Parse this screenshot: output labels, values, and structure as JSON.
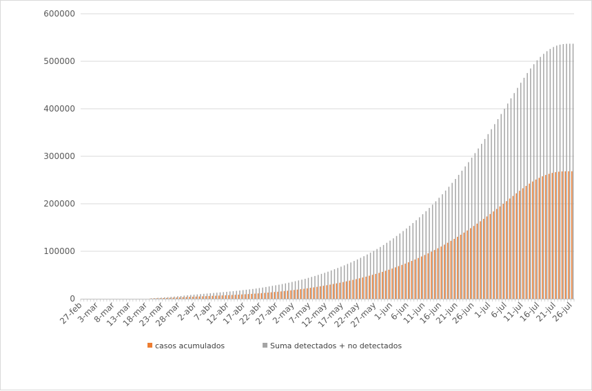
{
  "chart_data": {
    "type": "bar",
    "title": "",
    "xlabel": "",
    "ylabel": "",
    "ylim": [
      0,
      600000
    ],
    "yticks": [
      "0",
      "100000",
      "200000",
      "300000",
      "400000",
      "500000",
      "600000"
    ],
    "grid": true,
    "legend_position": "bottom",
    "colors": {
      "series1": "#ed7d31",
      "series2": "#a5a5a5",
      "grid": "#d9d9d9",
      "axis": "#bfbfbf"
    },
    "x_tick_labels": [
      "27-feb",
      "3-mar",
      "8-mar",
      "13-mar",
      "18-mar",
      "23-mar",
      "28-mar",
      "2-abr",
      "7-abr",
      "12-abr",
      "17-abr",
      "22-abr",
      "27-abr",
      "2-may",
      "7-may",
      "12-may",
      "17-may",
      "22-may",
      "27-may",
      "1-jun",
      "6-jun",
      "11-jun",
      "16-jun",
      "21-jun",
      "26-jun",
      "1-jul",
      "6-jul",
      "11-jul",
      "16-jul",
      "21-jul",
      "26-jul"
    ],
    "series": [
      {
        "name": "casos acumulados",
        "values": [
          0,
          0,
          0,
          0,
          0,
          0,
          0,
          0,
          0,
          0,
          0,
          0,
          0,
          0,
          0,
          0,
          0,
          0,
          0,
          0,
          0,
          500,
          700,
          1000,
          1200,
          1500,
          1700,
          2000,
          2300,
          2600,
          2900,
          3300,
          3600,
          4000,
          4300,
          4600,
          4900,
          5200,
          5500,
          5800,
          6100,
          6400,
          6700,
          7000,
          7300,
          7700,
          8000,
          8300,
          8700,
          9100,
          9500,
          9900,
          10300,
          10800,
          11300,
          11800,
          12400,
          13000,
          13600,
          14200,
          14800,
          15500,
          16200,
          16900,
          17700,
          18500,
          19300,
          20100,
          21000,
          22000,
          23000,
          24000,
          25100,
          26200,
          27300,
          28500,
          29800,
          31100,
          32400,
          33800,
          35200,
          36700,
          38200,
          39800,
          41400,
          43100,
          44800,
          46600,
          48500,
          50400,
          52400,
          54500,
          56600,
          58900,
          61200,
          63600,
          66100,
          68700,
          71300,
          74000,
          76800,
          79700,
          82700,
          85800,
          89000,
          92200,
          95600,
          99100,
          102600,
          106300,
          110000,
          113900,
          117900,
          122000,
          126100,
          130400,
          134800,
          139300,
          143800,
          148500,
          153300,
          158200,
          163100,
          168200,
          173300,
          178500,
          183800,
          189100,
          194500,
          200000,
          205500,
          211000,
          216500,
          222000,
          227400,
          232600,
          237600,
          242400,
          246900,
          251000,
          254600,
          257800,
          260600,
          263000,
          265000,
          266500,
          267500,
          268100,
          268400,
          268500,
          268500
        ]
      },
      {
        "name": "Suma detectados + no detectados",
        "values": [
          0,
          0,
          0,
          0,
          0,
          0,
          0,
          0,
          0,
          0,
          0,
          0,
          0,
          0,
          0,
          0,
          0,
          0,
          0,
          0,
          0,
          1000,
          1400,
          2000,
          2400,
          3000,
          3400,
          4000,
          4600,
          5200,
          5800,
          6600,
          7200,
          8000,
          8600,
          9200,
          9800,
          10400,
          11000,
          11600,
          12200,
          12800,
          13400,
          14000,
          14600,
          15400,
          16000,
          16600,
          17400,
          18200,
          19000,
          19800,
          20600,
          21600,
          22600,
          23600,
          24800,
          26000,
          27200,
          28400,
          29600,
          31000,
          32400,
          33800,
          35400,
          37000,
          38600,
          40200,
          42000,
          44000,
          46000,
          48000,
          50200,
          52400,
          54600,
          57000,
          59600,
          62200,
          64800,
          67600,
          70400,
          73400,
          76400,
          79600,
          82800,
          86200,
          89600,
          93200,
          97000,
          100800,
          104800,
          109000,
          113200,
          117800,
          122400,
          127200,
          132200,
          137400,
          142600,
          148000,
          153600,
          159400,
          165400,
          171600,
          178000,
          184400,
          191200,
          198200,
          205200,
          212600,
          220000,
          227800,
          235800,
          244000,
          252200,
          260800,
          269600,
          278600,
          287600,
          297000,
          306600,
          316400,
          326200,
          336400,
          346600,
          357000,
          367600,
          378200,
          389000,
          400000,
          411000,
          422000,
          433000,
          444000,
          454800,
          465200,
          475200,
          484800,
          493800,
          502000,
          509200,
          515600,
          521200,
          526000,
          530000,
          533000,
          535000,
          536200,
          536800,
          537000,
          537000
        ]
      }
    ]
  }
}
